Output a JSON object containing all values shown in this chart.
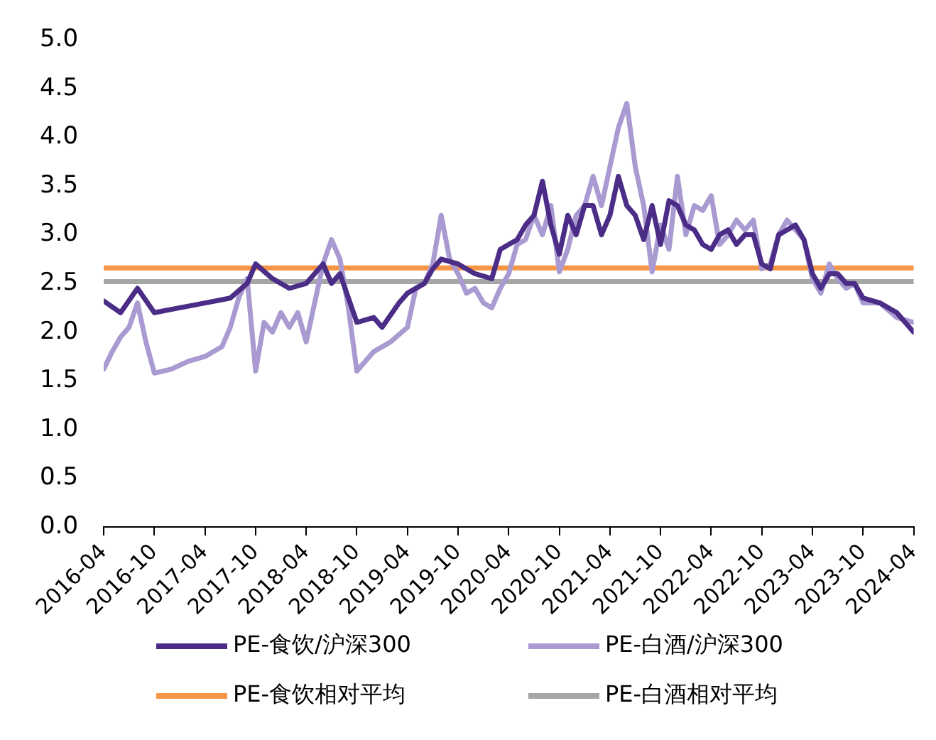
{
  "chart_data": {
    "type": "line",
    "x": [
      "2016-04",
      "2016-06",
      "2016-08",
      "2016-10",
      "2017-01",
      "2017-04",
      "2017-07",
      "2017-09",
      "2017-10",
      "2017-12",
      "2018-02",
      "2018-04",
      "2018-06",
      "2018-07",
      "2018-08",
      "2018-09",
      "2018-10",
      "2018-12",
      "2019-01",
      "2019-03",
      "2019-04",
      "2019-06",
      "2019-07",
      "2019-08",
      "2019-10",
      "2019-12",
      "2020-02",
      "2020-03",
      "2020-04",
      "2020-05",
      "2020-06",
      "2020-07",
      "2020-08",
      "2020-09",
      "2020-10",
      "2020-11",
      "2020-12",
      "2021-01",
      "2021-02",
      "2021-03",
      "2021-04",
      "2021-05",
      "2021-06",
      "2021-07",
      "2021-08",
      "2021-09",
      "2021-10",
      "2021-11",
      "2021-12",
      "2022-01",
      "2022-02",
      "2022-03",
      "2022-04",
      "2022-05",
      "2022-06",
      "2022-07",
      "2022-08",
      "2022-09",
      "2022-10",
      "2022-11",
      "2022-12",
      "2023-01",
      "2023-02",
      "2023-03",
      "2023-04",
      "2023-05",
      "2023-06",
      "2023-07",
      "2023-08",
      "2023-09",
      "2023-10",
      "2023-12",
      "2024-02",
      "2024-04"
    ],
    "series": [
      {
        "name": "PE-食饮/沪深300",
        "color": "#4b2c86",
        "values": [
          2.32,
          2.2,
          2.45,
          2.2,
          2.25,
          2.3,
          2.35,
          2.5,
          2.7,
          2.55,
          2.45,
          2.5,
          2.7,
          2.5,
          2.6,
          2.35,
          2.1,
          2.15,
          2.05,
          2.3,
          2.4,
          2.5,
          2.65,
          2.75,
          2.7,
          2.6,
          2.55,
          2.85,
          2.9,
          2.95,
          3.1,
          3.2,
          3.55,
          3.1,
          2.8,
          3.2,
          3.0,
          3.3,
          3.3,
          3.0,
          3.2,
          3.6,
          3.3,
          3.2,
          2.95,
          3.3,
          2.9,
          3.35,
          3.3,
          3.1,
          3.05,
          2.9,
          2.85,
          3.0,
          3.05,
          2.9,
          3.0,
          3.0,
          2.7,
          2.65,
          3.0,
          3.05,
          3.1,
          2.95,
          2.6,
          2.45,
          2.6,
          2.6,
          2.5,
          2.5,
          2.35,
          2.3,
          2.2,
          2.0
        ]
      },
      {
        "name": "PE-白酒/沪深300",
        "color": "#a99bd1",
        "x": [
          "2016-04",
          "2016-05",
          "2016-06",
          "2016-07",
          "2016-08",
          "2016-09",
          "2016-10",
          "2016-12",
          "2017-02",
          "2017-04",
          "2017-06",
          "2017-07",
          "2017-08",
          "2017-09",
          "2017-10",
          "2017-11",
          "2017-12",
          "2018-01",
          "2018-02",
          "2018-03",
          "2018-04",
          "2018-05",
          "2018-06",
          "2018-07",
          "2018-08",
          "2018-09",
          "2018-10",
          "2018-12",
          "2019-02",
          "2019-04",
          "2019-05",
          "2019-06",
          "2019-07",
          "2019-08",
          "2019-09",
          "2019-10",
          "2019-11",
          "2019-12",
          "2020-01",
          "2020-02",
          "2020-03",
          "2020-04",
          "2020-05",
          "2020-06",
          "2020-07",
          "2020-08",
          "2020-09",
          "2020-10",
          "2020-11",
          "2020-12",
          "2021-01",
          "2021-02",
          "2021-03",
          "2021-04",
          "2021-05",
          "2021-06",
          "2021-07",
          "2021-08",
          "2021-09",
          "2021-10",
          "2021-11",
          "2021-12",
          "2022-01",
          "2022-02",
          "2022-03",
          "2022-04",
          "2022-05",
          "2022-06",
          "2022-07",
          "2022-08",
          "2022-09",
          "2022-10",
          "2022-11",
          "2022-12",
          "2023-01",
          "2023-02",
          "2023-03",
          "2023-04",
          "2023-05",
          "2023-06",
          "2023-07",
          "2023-08",
          "2023-09",
          "2023-10",
          "2023-12",
          "2024-02",
          "2024-04"
        ],
        "values": [
          1.62,
          1.8,
          1.95,
          2.05,
          2.3,
          1.9,
          1.58,
          1.62,
          1.7,
          1.75,
          1.85,
          2.05,
          2.35,
          2.55,
          1.6,
          2.1,
          2.0,
          2.2,
          2.05,
          2.2,
          1.9,
          2.3,
          2.7,
          2.95,
          2.75,
          2.25,
          1.6,
          1.8,
          1.9,
          2.05,
          2.45,
          2.5,
          2.7,
          3.2,
          2.75,
          2.6,
          2.4,
          2.45,
          2.3,
          2.25,
          2.45,
          2.6,
          2.9,
          2.95,
          3.2,
          3.0,
          3.3,
          2.62,
          2.85,
          3.2,
          3.3,
          3.6,
          3.3,
          3.7,
          4.1,
          4.35,
          3.7,
          3.3,
          2.62,
          3.1,
          2.85,
          3.6,
          3.0,
          3.3,
          3.25,
          3.4,
          2.9,
          3.0,
          3.15,
          3.05,
          3.15,
          2.65,
          2.7,
          3.0,
          3.15,
          3.05,
          2.95,
          2.55,
          2.4,
          2.7,
          2.55,
          2.45,
          2.5,
          2.3,
          2.3,
          2.15,
          2.1
        ]
      },
      {
        "name": "PE-食饮相对平均",
        "color": "#f79646",
        "x": [
          "2016-04",
          "2024-04"
        ],
        "values": [
          2.66,
          2.66
        ]
      },
      {
        "name": "PE-白酒相对平均",
        "color": "#a6a6a6",
        "x": [
          "2016-04",
          "2024-04"
        ],
        "values": [
          2.52,
          2.52
        ]
      }
    ],
    "xlim": [
      "2016-04",
      "2024-04"
    ],
    "xticks": [
      "2016-04",
      "2016-10",
      "2017-04",
      "2017-10",
      "2018-04",
      "2018-10",
      "2019-04",
      "2019-10",
      "2020-04",
      "2020-10",
      "2021-04",
      "2021-10",
      "2022-04",
      "2022-10",
      "2023-04",
      "2023-10",
      "2024-04"
    ],
    "ylim": [
      0,
      5
    ],
    "yticks": [
      {
        "value": 0,
        "label": "0.0"
      },
      {
        "value": 0.5,
        "label": "0.5"
      },
      {
        "value": 1,
        "label": "1.0"
      },
      {
        "value": 1.5,
        "label": "1.5"
      },
      {
        "value": 2,
        "label": "2.0"
      },
      {
        "value": 2.5,
        "label": "2.5"
      },
      {
        "value": 3,
        "label": "3.0"
      },
      {
        "value": 3.5,
        "label": "3.5"
      },
      {
        "value": 4,
        "label": "4.0"
      },
      {
        "value": 4.5,
        "label": "4.5"
      },
      {
        "value": 5,
        "label": "5.0"
      }
    ],
    "grid": false,
    "legend": "bottom",
    "marker": "none",
    "line_style": "solid"
  }
}
